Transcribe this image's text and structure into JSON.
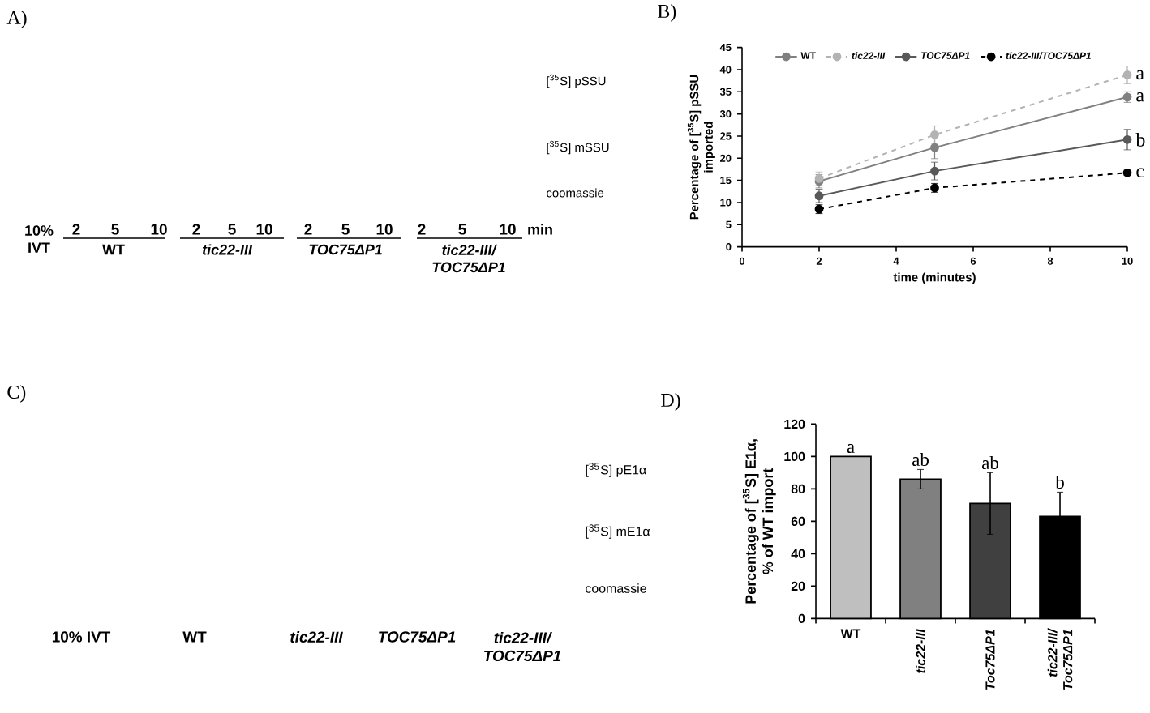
{
  "chart_data": [
    {
      "type": "other",
      "title": "A)",
      "annotations": [
        "[$^{35}$S] pSSU",
        "[$^{35}$S] mSSU",
        "coomassie",
        "10% IVT",
        "2",
        "5",
        "10",
        "2",
        "5",
        "10",
        "2",
        "5",
        "10",
        "2",
        "5",
        "10",
        "min",
        "WT",
        "tic22-III",
        "TOC75ΔP1",
        "tic22-III/ TOC75ΔP1"
      ]
    },
    {
      "type": "line",
      "title": "B)",
      "xlabel": "time (minutes)",
      "ylabel": "Percentage of [$^{35}$S] pSSU imported",
      "x": [
        2,
        5,
        10
      ],
      "series": [
        {
          "name": "WT",
          "color": "#808080",
          "values": [
            14.8,
            22.4,
            33.8
          ],
          "errors": [
            1.5,
            2.5,
            1.2
          ],
          "line_style": "solid"
        },
        {
          "name": "tic22-III",
          "color": "#b3b3b3",
          "values": [
            15.4,
            25.3,
            38.8
          ],
          "errors": [
            1.5,
            2,
            2
          ],
          "line_style": "dashed"
        },
        {
          "name": "TOC75ΔP1",
          "color": "#595959",
          "values": [
            11.5,
            17.1,
            24.2
          ],
          "errors": [
            1.5,
            2,
            2.3
          ],
          "line_style": "solid"
        },
        {
          "name": "tic22-III/TOC75ΔP1",
          "color": "#000000",
          "values": [
            8.5,
            13.3,
            16.7
          ],
          "errors": [
            1,
            1,
            0.6
          ],
          "line_style": "dashed"
        }
      ],
      "xlim": [
        0,
        10
      ],
      "xticks": [
        0,
        2,
        4,
        6,
        8,
        10
      ],
      "ylim": [
        0,
        45
      ],
      "yticks": [
        0,
        5,
        10,
        15,
        20,
        25,
        30,
        35,
        40,
        45
      ],
      "legend": "top",
      "marker": "circle",
      "annotations": [
        {
          "text": "a",
          "x": 10,
          "y": 38.8
        },
        {
          "text": "a",
          "x": 10,
          "y": 33.8
        },
        {
          "text": "b",
          "x": 10,
          "y": 24.2
        },
        {
          "text": "c",
          "x": 10,
          "y": 16.7
        }
      ]
    },
    {
      "type": "other",
      "title": "C)",
      "annotations": [
        "[$^{35}$S] pE1α",
        "[$^{35}$S] mE1α",
        "coomassie",
        "10% IVT",
        "WT",
        "tic22-III",
        "TOC75ΔP1",
        "tic22-III/ TOC75ΔP1"
      ]
    },
    {
      "type": "bar",
      "title": "D)",
      "ylabel": "Percentage of [$^{35}$S] E1α, % of WT import",
      "categories": [
        "WT",
        "tic22-III",
        "Toc75ΔP1",
        "tic22-III/ Toc75ΔP1"
      ],
      "values": [
        100,
        86,
        71,
        63
      ],
      "errors": [
        null,
        6,
        19,
        15
      ],
      "colors": [
        "#bfbfbf",
        "#808080",
        "#404040",
        "#000000"
      ],
      "ylim": [
        0,
        120
      ],
      "yticks": [
        0,
        20,
        40,
        60,
        80,
        100,
        120
      ],
      "annotations": [
        {
          "text": "a",
          "x": "WT",
          "y": 100
        },
        {
          "text": "ab",
          "x": "tic22-III",
          "y": 86
        },
        {
          "text": "ab",
          "x": "Toc75ΔP1",
          "y": 71
        },
        {
          "text": "b",
          "x": "tic22-III/ Toc75ΔP1",
          "y": 63
        }
      ]
    }
  ]
}
